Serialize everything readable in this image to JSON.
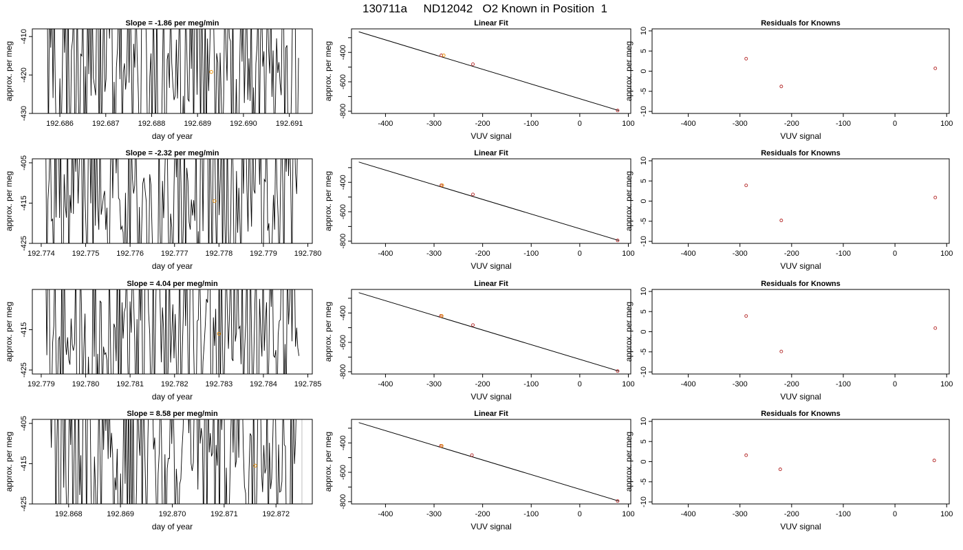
{
  "figure_title": "130711a     ND12042   O2 Known in Position  1",
  "colors": {
    "line": "#000000",
    "marker_orange": "#e8900a",
    "marker_red": "#b22222",
    "ref_grey": "#bdbdbd"
  },
  "chart_data": [
    {
      "type": "line",
      "row": 1,
      "col": 1,
      "title": "Slope =  -1.86  per meg/min",
      "xlabel": "day of year",
      "ylabel": "approx. per meg",
      "xlim": [
        192.6854,
        192.6915
      ],
      "ylim": [
        -430,
        -408
      ],
      "xticks": [
        "192.686",
        "192.687",
        "192.688",
        "192.689",
        "192.690",
        "192.691"
      ],
      "yticks": [
        "-410",
        "-420",
        "-430"
      ],
      "seed": 11,
      "highlight": {
        "x": 192.6893,
        "y": -419.2
      }
    },
    {
      "type": "line",
      "row": 1,
      "col": 2,
      "title": "Linear Fit",
      "xlabel": "VUV signal",
      "ylabel": "approx. per meg",
      "xlim": [
        -470,
        105
      ],
      "ylim": [
        -815,
        -240
      ],
      "xticks": [
        "-400",
        "-300",
        "-200",
        "-100",
        "0",
        "100"
      ],
      "yticks": [
        "-400",
        "-600",
        "-800"
      ],
      "fit_line": {
        "x": [
          -455,
          80
        ],
        "y": [
          -260,
          -795
        ]
      },
      "points": [
        {
          "x": -285,
          "y": -420,
          "color": "red"
        },
        {
          "x": -280,
          "y": -420,
          "color": "orange"
        },
        {
          "x": -220,
          "y": -480,
          "color": "red"
        },
        {
          "x": 78,
          "y": -795,
          "color": "red"
        }
      ]
    },
    {
      "type": "scatter",
      "row": 1,
      "col": 3,
      "title": "Residuals for Knowns",
      "xlabel": "VUV signal",
      "ylabel": "approx. per meg",
      "xlim": [
        -470,
        105
      ],
      "ylim": [
        -10.5,
        10.5
      ],
      "xticks": [
        "-400",
        "-300",
        "-200",
        "-100",
        "0",
        "100"
      ],
      "yticks": [
        "10",
        "5",
        "0",
        "-5",
        "-10"
      ],
      "points": [
        {
          "x": -288,
          "y": 3.1
        },
        {
          "x": -220,
          "y": -3.8
        },
        {
          "x": 78,
          "y": 0.7
        }
      ]
    },
    {
      "type": "line",
      "row": 2,
      "col": 1,
      "title": "Slope =  -2.32  per meg/min",
      "xlabel": "day of year",
      "ylabel": "approx. per meg",
      "xlim": [
        192.7738,
        192.7801
      ],
      "ylim": [
        -425,
        -404
      ],
      "xticks": [
        "192.774",
        "192.775",
        "192.776",
        "192.777",
        "192.778",
        "192.779",
        "192.780"
      ],
      "yticks": [
        "-405",
        "-415",
        "-425"
      ],
      "seed": 23,
      "highlight": {
        "x": 192.7779,
        "y": -414.5
      }
    },
    {
      "type": "line",
      "row": 2,
      "col": 2,
      "title": "Linear Fit",
      "xlabel": "VUV signal",
      "ylabel": "approx. per meg",
      "xlim": [
        -470,
        105
      ],
      "ylim": [
        -815,
        -240
      ],
      "xticks": [
        "-400",
        "-300",
        "-200",
        "-100",
        "0",
        "100"
      ],
      "yticks": [
        "-400",
        "-600",
        "-800"
      ],
      "fit_line": {
        "x": [
          -455,
          80
        ],
        "y": [
          -262,
          -795
        ]
      },
      "points": [
        {
          "x": -285,
          "y": -420,
          "color": "red"
        },
        {
          "x": -283,
          "y": -420,
          "color": "orange"
        },
        {
          "x": -220,
          "y": -482,
          "color": "red"
        },
        {
          "x": 78,
          "y": -795,
          "color": "red"
        }
      ]
    },
    {
      "type": "scatter",
      "row": 2,
      "col": 3,
      "title": "Residuals for Knowns",
      "xlabel": "VUV signal",
      "ylabel": "approx. per meg",
      "xlim": [
        -470,
        105
      ],
      "ylim": [
        -10.5,
        10.5
      ],
      "xticks": [
        "-400",
        "-300",
        "-200",
        "-100",
        "0",
        "100"
      ],
      "yticks": [
        "10",
        "5",
        "0",
        "-5",
        "-10"
      ],
      "points": [
        {
          "x": -288,
          "y": 3.9
        },
        {
          "x": -220,
          "y": -4.8
        },
        {
          "x": 78,
          "y": 0.9
        }
      ]
    },
    {
      "type": "line",
      "row": 3,
      "col": 1,
      "title": "Slope =  4.04  per meg/min",
      "xlabel": "day of year",
      "ylabel": "approx. per meg",
      "xlim": [
        192.7788,
        192.7851
      ],
      "ylim": [
        -426,
        -405
      ],
      "xticks": [
        "192.779",
        "192.780",
        "192.781",
        "192.782",
        "192.783",
        "192.784",
        "192.785"
      ],
      "yticks": [
        "-415",
        "-425"
      ],
      "seed": 37,
      "highlight": {
        "x": 192.783,
        "y": -416
      }
    },
    {
      "type": "line",
      "row": 3,
      "col": 2,
      "title": "Linear Fit",
      "xlabel": "VUV signal",
      "ylabel": "approx. per meg",
      "xlim": [
        -470,
        105
      ],
      "ylim": [
        -815,
        -240
      ],
      "xticks": [
        "-400",
        "-300",
        "-200",
        "-100",
        "0",
        "100"
      ],
      "yticks": [
        "-400",
        "-600",
        "-800"
      ],
      "fit_line": {
        "x": [
          -455,
          80
        ],
        "y": [
          -262,
          -795
        ]
      },
      "points": [
        {
          "x": -286,
          "y": -420,
          "color": "red"
        },
        {
          "x": -284,
          "y": -420,
          "color": "orange"
        },
        {
          "x": -220,
          "y": -482,
          "color": "red"
        },
        {
          "x": 78,
          "y": -795,
          "color": "red"
        }
      ]
    },
    {
      "type": "scatter",
      "row": 3,
      "col": 3,
      "title": "Residuals for Knowns",
      "xlabel": "VUV signal",
      "ylabel": "approx. per meg",
      "xlim": [
        -470,
        105
      ],
      "ylim": [
        -10.5,
        10.5
      ],
      "xticks": [
        "-400",
        "-300",
        "-200",
        "-100",
        "0",
        "100"
      ],
      "yticks": [
        "10",
        "5",
        "0",
        "-5",
        "-10"
      ],
      "points": [
        {
          "x": -288,
          "y": 3.9
        },
        {
          "x": -220,
          "y": -4.9
        },
        {
          "x": 78,
          "y": 0.9
        }
      ]
    },
    {
      "type": "line",
      "row": 4,
      "col": 1,
      "title": "Slope =  8.58  per meg/min",
      "xlabel": "day of year",
      "ylabel": "approx. per meg",
      "xlim": [
        192.8673,
        192.8727
      ],
      "ylim": [
        -425,
        -404
      ],
      "xticks": [
        "192.868",
        "192.869",
        "192.870",
        "192.871",
        "192.872"
      ],
      "yticks": [
        "-405",
        "-415",
        "-425"
      ],
      "seed": 53,
      "highlight": {
        "x": 192.8716,
        "y": -415.5
      },
      "ref_lines_x": [
        192.8709,
        192.8725
      ]
    },
    {
      "type": "line",
      "row": 4,
      "col": 2,
      "title": "Linear Fit",
      "xlabel": "VUV signal",
      "ylabel": "approx. per meg",
      "xlim": [
        -470,
        105
      ],
      "ylim": [
        -815,
        -240
      ],
      "xticks": [
        "-400",
        "-300",
        "-200",
        "-100",
        "0",
        "100"
      ],
      "yticks": [
        "-400",
        "-600",
        "-800"
      ],
      "fit_line": {
        "x": [
          -455,
          80
        ],
        "y": [
          -262,
          -795
        ]
      },
      "points": [
        {
          "x": -286,
          "y": -420,
          "color": "red"
        },
        {
          "x": -284,
          "y": -420,
          "color": "orange"
        },
        {
          "x": -222,
          "y": -483,
          "color": "red"
        },
        {
          "x": 78,
          "y": -795,
          "color": "red"
        }
      ]
    },
    {
      "type": "scatter",
      "row": 4,
      "col": 3,
      "title": "Residuals for Knowns",
      "xlabel": "VUV signal",
      "ylabel": "approx. per meg",
      "xlim": [
        -470,
        105
      ],
      "ylim": [
        -10.5,
        10.5
      ],
      "xticks": [
        "-400",
        "-300",
        "-200",
        "-100",
        "0",
        "100"
      ],
      "yticks": [
        "10",
        "5",
        "0",
        "-5",
        "-10"
      ],
      "points": [
        {
          "x": -288,
          "y": 1.6
        },
        {
          "x": -222,
          "y": -1.9
        },
        {
          "x": 76,
          "y": 0.3
        }
      ]
    }
  ]
}
